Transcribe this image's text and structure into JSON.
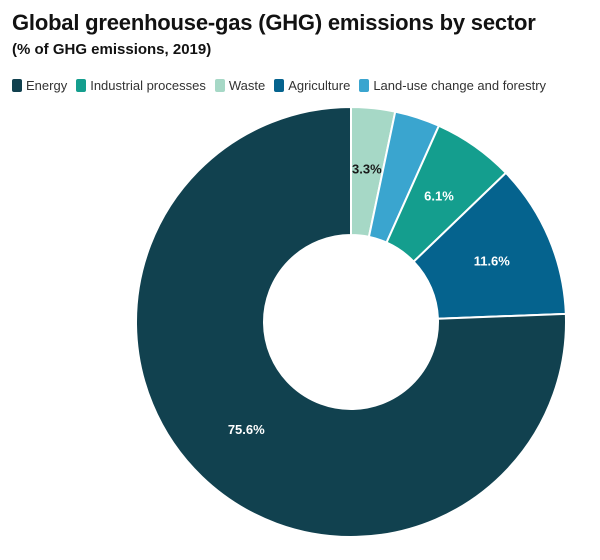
{
  "chart_data": {
    "type": "pie",
    "title": "Global greenhouse-gas (GHG) emissions by sector",
    "subtitle": "(% of GHG emissions, 2019)",
    "legend_position": "top-left",
    "slices": [
      {
        "label": "Waste",
        "value": 3.3,
        "color": "#a6d8c6",
        "display": "3.3%",
        "label_color": "#1a1a1a"
      },
      {
        "label": "Land-use change and forestry",
        "value": 3.4,
        "color": "#3aa5cf",
        "display": "",
        "label_color": "#ffffff"
      },
      {
        "label": "Industrial processes",
        "value": 6.1,
        "color": "#149e8e",
        "display": "6.1%",
        "label_color": "#ffffff"
      },
      {
        "label": "Agriculture",
        "value": 11.6,
        "color": "#05638e",
        "display": "11.6%",
        "label_color": "#ffffff"
      },
      {
        "label": "Energy",
        "value": 75.6,
        "color": "#11414f",
        "display": "75.6%",
        "label_color": "#ffffff"
      }
    ],
    "legend_order": [
      "Energy",
      "Industrial processes",
      "Waste",
      "Agriculture",
      "Land-use change and forestry"
    ]
  }
}
